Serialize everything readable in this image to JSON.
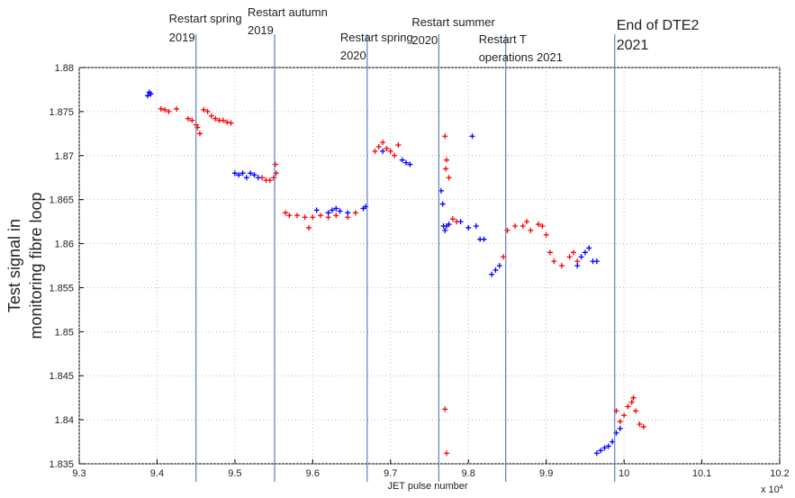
{
  "chart_data": {
    "type": "scatter",
    "xlabel": "JET pulse number",
    "ylabel": [
      "Test signal in",
      "monitoring fibre loop"
    ],
    "x_multiplier": {
      "base": "x 10",
      "exp": "4"
    },
    "xlim": [
      9.3,
      10.2
    ],
    "xticks": [
      9.3,
      9.4,
      9.5,
      9.6,
      9.7,
      9.8,
      9.9,
      10,
      10.1,
      10.2
    ],
    "ylim": [
      1.835,
      1.88
    ],
    "yticks": [
      1.835,
      1.84,
      1.845,
      1.85,
      1.855,
      1.86,
      1.865,
      1.87,
      1.875,
      1.88
    ],
    "grid": true,
    "annotations": [
      {
        "x": 9.45,
        "lines": [
          "Restart  spring",
          "2019"
        ]
      },
      {
        "x": 9.551,
        "lines": [
          "Restart  autumn",
          "2019"
        ]
      },
      {
        "x": 9.67,
        "lines": [
          "Restart  spring",
          "2020"
        ]
      },
      {
        "x": 9.762,
        "lines": [
          "Restart  summer",
          "2020"
        ]
      },
      {
        "x": 9.848,
        "lines": [
          "Restart  T",
          "operations 2021"
        ]
      },
      {
        "x": 9.988,
        "lines": [
          "End of DTE2",
          "2021"
        ]
      }
    ],
    "series": [
      {
        "color": "#ff0000",
        "x": [
          9.41,
          9.405,
          9.415,
          9.425,
          9.44,
          9.445,
          9.45,
          9.452,
          9.455,
          9.46,
          9.465,
          9.47,
          9.475,
          9.48,
          9.485,
          9.49,
          9.495,
          9.535,
          9.54,
          9.545,
          9.55,
          9.553,
          9.552,
          9.565,
          9.57,
          9.58,
          9.59,
          9.595,
          9.6,
          9.61,
          9.62,
          9.63,
          9.645,
          9.655,
          9.68,
          9.685,
          9.69,
          9.695,
          9.7,
          9.71,
          9.705,
          9.77,
          9.772,
          9.771,
          9.775,
          9.77,
          9.772,
          9.78,
          9.785,
          9.845,
          9.85,
          9.86,
          9.87,
          9.875,
          9.88,
          9.89,
          9.895,
          9.9,
          9.905,
          9.91,
          9.92,
          9.93,
          9.935,
          9.94,
          10.0,
          10.005,
          10.01,
          10.015,
          10.02,
          10.025,
          10.012,
          9.99,
          9.995
        ],
        "values": [
          1.8752,
          1.8753,
          1.875,
          1.8753,
          1.8742,
          1.874,
          1.8735,
          1.8732,
          1.8725,
          1.8752,
          1.875,
          1.8745,
          1.8742,
          1.874,
          1.874,
          1.8738,
          1.8737,
          1.8675,
          1.8672,
          1.8672,
          1.8675,
          1.868,
          1.869,
          1.8635,
          1.8632,
          1.8632,
          1.863,
          1.8618,
          1.863,
          1.8632,
          1.863,
          1.8632,
          1.863,
          1.8635,
          1.8705,
          1.871,
          1.8715,
          1.8708,
          1.8705,
          1.8712,
          1.87,
          1.8722,
          1.8695,
          1.8685,
          1.8675,
          1.8412,
          1.8362,
          1.8628,
          1.8625,
          1.8585,
          1.8615,
          1.862,
          1.862,
          1.8625,
          1.8615,
          1.8622,
          1.862,
          1.861,
          1.859,
          1.858,
          1.8575,
          1.8585,
          1.859,
          1.858,
          1.8405,
          1.8415,
          1.842,
          1.841,
          1.8395,
          1.8392,
          1.8425,
          1.841,
          1.8398
        ]
      },
      {
        "color": "#0000ff",
        "x": [
          9.388,
          9.39,
          9.392,
          9.5,
          9.505,
          9.51,
          9.515,
          9.52,
          9.525,
          9.53,
          9.605,
          9.62,
          9.625,
          9.63,
          9.635,
          9.645,
          9.665,
          9.668,
          9.69,
          9.72,
          9.715,
          9.725,
          9.765,
          9.767,
          9.768,
          9.77,
          9.772,
          9.775,
          9.79,
          9.8,
          9.805,
          9.81,
          9.815,
          9.82,
          9.83,
          9.835,
          9.84,
          9.945,
          9.95,
          9.955,
          9.96,
          9.965,
          9.94,
          9.965,
          9.97,
          9.975,
          9.98,
          9.985,
          9.99,
          9.995
        ],
        "values": [
          1.8768,
          1.8772,
          1.877,
          1.868,
          1.8678,
          1.868,
          1.8675,
          1.868,
          1.8678,
          1.8675,
          1.8638,
          1.8635,
          1.8638,
          1.864,
          1.8637,
          1.8635,
          1.864,
          1.8642,
          1.8705,
          1.8692,
          1.8695,
          1.869,
          1.866,
          1.8645,
          1.862,
          1.8615,
          1.862,
          1.8622,
          1.8625,
          1.8618,
          1.8722,
          1.862,
          1.8605,
          1.8605,
          1.8565,
          1.857,
          1.8575,
          1.8585,
          1.859,
          1.8595,
          1.858,
          1.858,
          1.8575,
          1.8362,
          1.8365,
          1.8368,
          1.837,
          1.8375,
          1.8385,
          1.839
        ]
      }
    ]
  }
}
